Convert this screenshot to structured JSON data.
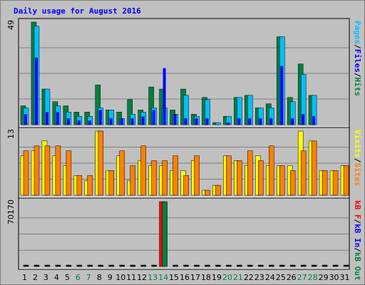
{
  "chart_data": {
    "type": "bar",
    "title": "Daily usage for August 2016",
    "categories": [
      "1",
      "2",
      "3",
      "4",
      "5",
      "6",
      "7",
      "8",
      "9",
      "10",
      "11",
      "12",
      "13",
      "14",
      "15",
      "16",
      "17",
      "18",
      "19",
      "20",
      "21",
      "22",
      "23",
      "24",
      "25",
      "26",
      "27",
      "28",
      "29",
      "30",
      "31"
    ],
    "weekend_days": [
      6,
      7,
      13,
      14,
      20,
      21,
      27,
      28
    ],
    "panels": [
      {
        "id": "hits-files-pages",
        "y_max_label": "49",
        "ylim": [
          0,
          49
        ],
        "legend": [
          {
            "text": "Pages",
            "color": "#00c0ff"
          },
          {
            "text": "/",
            "color": "#000000"
          },
          {
            "text": "Files",
            "color": "#0000ff"
          },
          {
            "text": "/",
            "color": "#000000"
          },
          {
            "text": "Hits",
            "color": "#008040"
          }
        ],
        "series": [
          {
            "name": "Hits",
            "color": "#008040",
            "values": [
              9,
              49,
              17,
              11,
              9,
              6,
              6,
              19,
              7,
              6,
              12,
              7,
              18,
              17,
              7,
              17,
              5,
              13,
              1,
              4,
              13,
              14,
              8,
              10,
              42,
              13,
              29,
              14,
              0,
              0,
              0
            ]
          },
          {
            "name": "Files",
            "color": "#0000ff",
            "values": [
              5,
              32,
              6,
              6,
              3,
              2,
              2,
              7,
              3,
              3,
              3,
              4,
              7,
              27,
              5,
              3,
              3,
              3,
              0,
              1,
              3,
              3,
              3,
              3,
              28,
              3,
              5,
              4,
              0,
              0,
              0
            ]
          },
          {
            "name": "Pages",
            "color": "#00c0ff",
            "values": [
              8,
              47,
              17,
              9,
              6,
              4,
              4,
              8,
              7,
              3,
              5,
              6,
              8,
              8,
              5,
              14,
              4,
              12,
              1,
              4,
              13,
              14,
              8,
              8,
              42,
              11,
              24,
              14,
              0,
              0,
              0
            ]
          }
        ]
      },
      {
        "id": "visits-sites",
        "y_max_label": "13",
        "ylim": [
          0,
          13
        ],
        "legend": [
          {
            "text": "Visits",
            "color": "#ffff00"
          },
          {
            "text": "/",
            "color": "#000000"
          },
          {
            "text": "Sites",
            "color": "#ff8000"
          }
        ],
        "series": [
          {
            "name": "Visits",
            "color": "#ffff00",
            "values": [
              8,
              9,
              11,
              8,
              6,
              4,
              3,
              13,
              5,
              8,
              3,
              7,
              6,
              6,
              5,
              5,
              7,
              1,
              2,
              8,
              7,
              6,
              8,
              6,
              6,
              6,
              13,
              11,
              5,
              5,
              6
            ]
          },
          {
            "name": "Sites",
            "color": "#ff8000",
            "values": [
              9,
              10,
              10,
              10,
              9,
              4,
              4,
              13,
              5,
              9,
              6,
              10,
              7,
              7,
              8,
              4,
              8,
              1,
              2,
              8,
              7,
              9,
              7,
              10,
              6,
              5,
              9,
              11,
              5,
              5,
              6
            ]
          }
        ]
      },
      {
        "id": "kb-in-out",
        "y_max_label": "70170",
        "ylim": [
          0,
          70170
        ],
        "legend": [
          {
            "text": "kB F",
            "color": "#ff0000"
          },
          {
            "text": "/",
            "color": "#000000"
          },
          {
            "text": "kB In",
            "color": "#0000ff"
          },
          {
            "text": "/",
            "color": "#000000"
          },
          {
            "text": "kB Out",
            "color": "#008040"
          }
        ],
        "series": [
          {
            "name": "kB F",
            "color": "#ff0000",
            "values": [
              0,
              0,
              0,
              0,
              0,
              0,
              0,
              0,
              0,
              0,
              0,
              0,
              0,
              70170,
              0,
              0,
              0,
              0,
              0,
              0,
              0,
              0,
              0,
              0,
              0,
              0,
              0,
              0,
              0,
              0,
              0
            ]
          },
          {
            "name": "kB In",
            "color": "#0000ff",
            "values": [
              0,
              0,
              0,
              0,
              0,
              0,
              0,
              0,
              0,
              0,
              0,
              0,
              0,
              0,
              0,
              0,
              0,
              0,
              0,
              0,
              0,
              0,
              0,
              0,
              0,
              0,
              0,
              0,
              0,
              0,
              0
            ]
          },
          {
            "name": "kB Out",
            "color": "#008040",
            "values": [
              900,
              900,
              900,
              900,
              900,
              900,
              900,
              900,
              900,
              900,
              900,
              900,
              900,
              70170,
              900,
              900,
              900,
              900,
              900,
              900,
              900,
              900,
              900,
              900,
              900,
              900,
              900,
              900,
              900,
              900,
              900
            ]
          }
        ]
      }
    ],
    "colors": {
      "background": "#c0c0c0",
      "title": "#0000ff",
      "weekend_tick": "#008040",
      "gridline": "#808080"
    }
  }
}
